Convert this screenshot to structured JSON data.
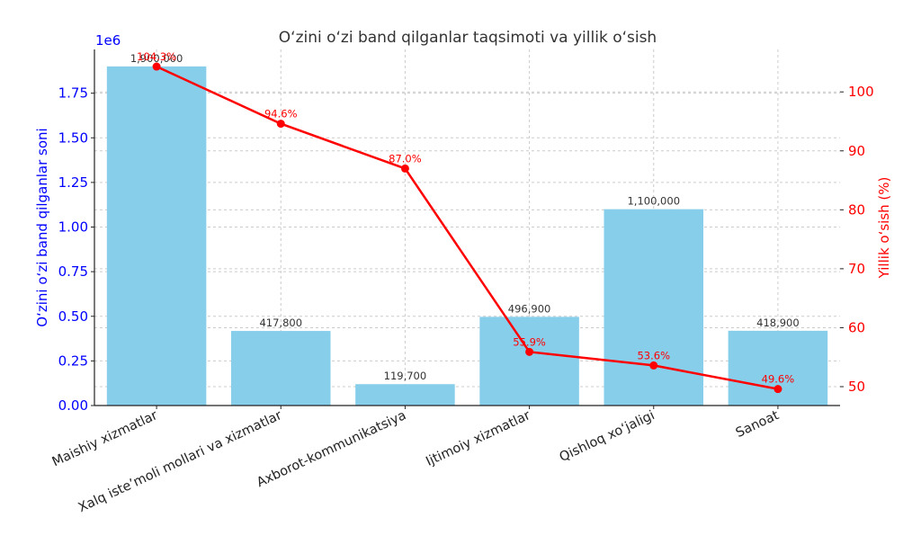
{
  "chart_data": {
    "type": "bar+line",
    "title": "O‘zini o‘zi band qilganlar taqsimoti va yillik o‘sish",
    "xlabel": "",
    "categories": [
      "Maishiy xizmatlar",
      "Xalq iste’moli mollari va xizmatlar",
      "Axborot-kommunikatsiya",
      "Ijtimoiy xizmatlar",
      "Qishloq xo‘jaligi",
      "Sanoat"
    ],
    "series": [
      {
        "name": "O‘zini o‘zi band qilganlar soni",
        "type": "bar",
        "axis": "left",
        "color": "#87ceeb",
        "values": [
          1900000,
          417800,
          119700,
          496900,
          1100000,
          418900
        ],
        "labels": [
          "1,900,000",
          "417,800",
          "119,700",
          "496,900",
          "1,100,000",
          "418,900"
        ]
      },
      {
        "name": "Yillik o‘sish (%)",
        "type": "line",
        "axis": "right",
        "color": "#ff0000",
        "values": [
          104.3,
          94.6,
          87.0,
          55.9,
          53.6,
          49.6
        ],
        "labels": [
          "104.3%",
          "94.6%",
          "87.0%",
          "55.9%",
          "53.6%",
          "49.6%"
        ]
      }
    ],
    "y_left": {
      "label": "O‘zini o‘zi band qilganlar soni",
      "offset_text": "1e6",
      "ticks": [
        "0.00",
        "0.25",
        "0.50",
        "0.75",
        "1.00",
        "1.25",
        "1.50",
        "1.75"
      ],
      "tick_values": [
        0,
        250000,
        500000,
        750000,
        1000000,
        1250000,
        1500000,
        1750000
      ],
      "ylim": [
        0,
        1995000
      ],
      "color": "#0000ff"
    },
    "y_right": {
      "label": "Yillik o‘sish (%)",
      "ticks": [
        "50",
        "60",
        "70",
        "80",
        "90",
        "100"
      ],
      "tick_values": [
        50,
        60,
        70,
        80,
        90,
        100
      ],
      "ylim": [
        46.8,
        107.2
      ],
      "color": "#ff0000"
    },
    "grid": true,
    "legend": null
  }
}
